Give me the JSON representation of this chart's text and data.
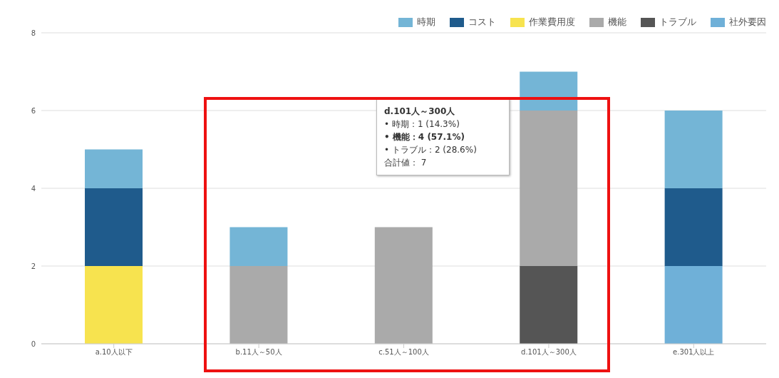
{
  "chart_data": {
    "type": "bar",
    "stacked": true,
    "categories": [
      "a.10人以下",
      "b.11人～50人",
      "c.51人～100人",
      "d.101人～300人",
      "e.301人以上"
    ],
    "series": [
      {
        "name": "社外要因",
        "color": "#6fb0d8",
        "values": [
          null,
          null,
          null,
          null,
          2
        ]
      },
      {
        "name": "トラブル",
        "color": "#555555",
        "values": [
          null,
          null,
          null,
          2,
          null
        ]
      },
      {
        "name": "機能",
        "color": "#aaaaaa",
        "values": [
          null,
          2,
          3,
          4,
          null
        ]
      },
      {
        "name": "作業費用度",
        "color": "#f7e34f",
        "values": [
          2,
          null,
          null,
          null,
          null
        ]
      },
      {
        "name": "コスト",
        "color": "#1f5b8c",
        "values": [
          2,
          null,
          null,
          null,
          2
        ]
      },
      {
        "name": "時期",
        "color": "#74b5d6",
        "values": [
          1,
          1,
          null,
          1,
          2
        ]
      }
    ],
    "ylim": [
      0,
      8
    ],
    "yticks": [
      0,
      2,
      4,
      6,
      8
    ],
    "grid": "y",
    "legend": "top right",
    "annotations": [
      "d.101人～300人",
      "• 時期：1 (14.3%)",
      "• 機能：4 (57.1%)",
      "• トラブル：2 (28.6%)",
      "合計値： 7"
    ]
  }
}
